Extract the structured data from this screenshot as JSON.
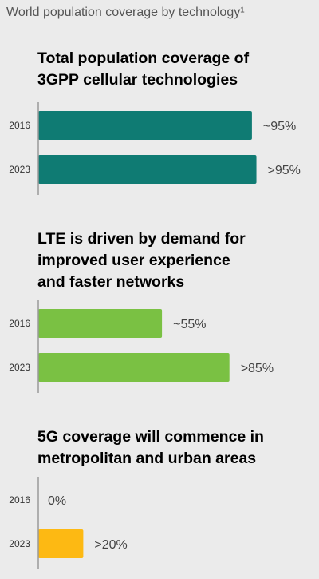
{
  "title": "World population coverage by technology¹",
  "chart_data": [
    {
      "type": "bar",
      "orientation": "horizontal",
      "title_lines": [
        "Total population coverage of",
        "3GPP cellular technologies"
      ],
      "color": "#0f7b73",
      "categories": [
        "2016",
        "2023"
      ],
      "values": [
        95,
        97
      ],
      "value_labels": [
        "~95%",
        ">95%"
      ],
      "xlim": [
        0,
        100
      ]
    },
    {
      "type": "bar",
      "orientation": "horizontal",
      "title_lines": [
        "LTE is driven by demand for",
        "improved user experience",
        "and faster networks"
      ],
      "color": "#7ac143",
      "categories": [
        "2016",
        "2023"
      ],
      "values": [
        55,
        85
      ],
      "value_labels": [
        "~55%",
        ">85%"
      ],
      "xlim": [
        0,
        100
      ]
    },
    {
      "type": "bar",
      "orientation": "horizontal",
      "title_lines": [
        "5G coverage will commence in",
        "metropolitan and urban areas"
      ],
      "color": "#fdb913",
      "categories": [
        "2016",
        "2023"
      ],
      "values": [
        0,
        20
      ],
      "value_labels": [
        "0%",
        ">20%"
      ],
      "xlim": [
        0,
        100
      ]
    }
  ]
}
